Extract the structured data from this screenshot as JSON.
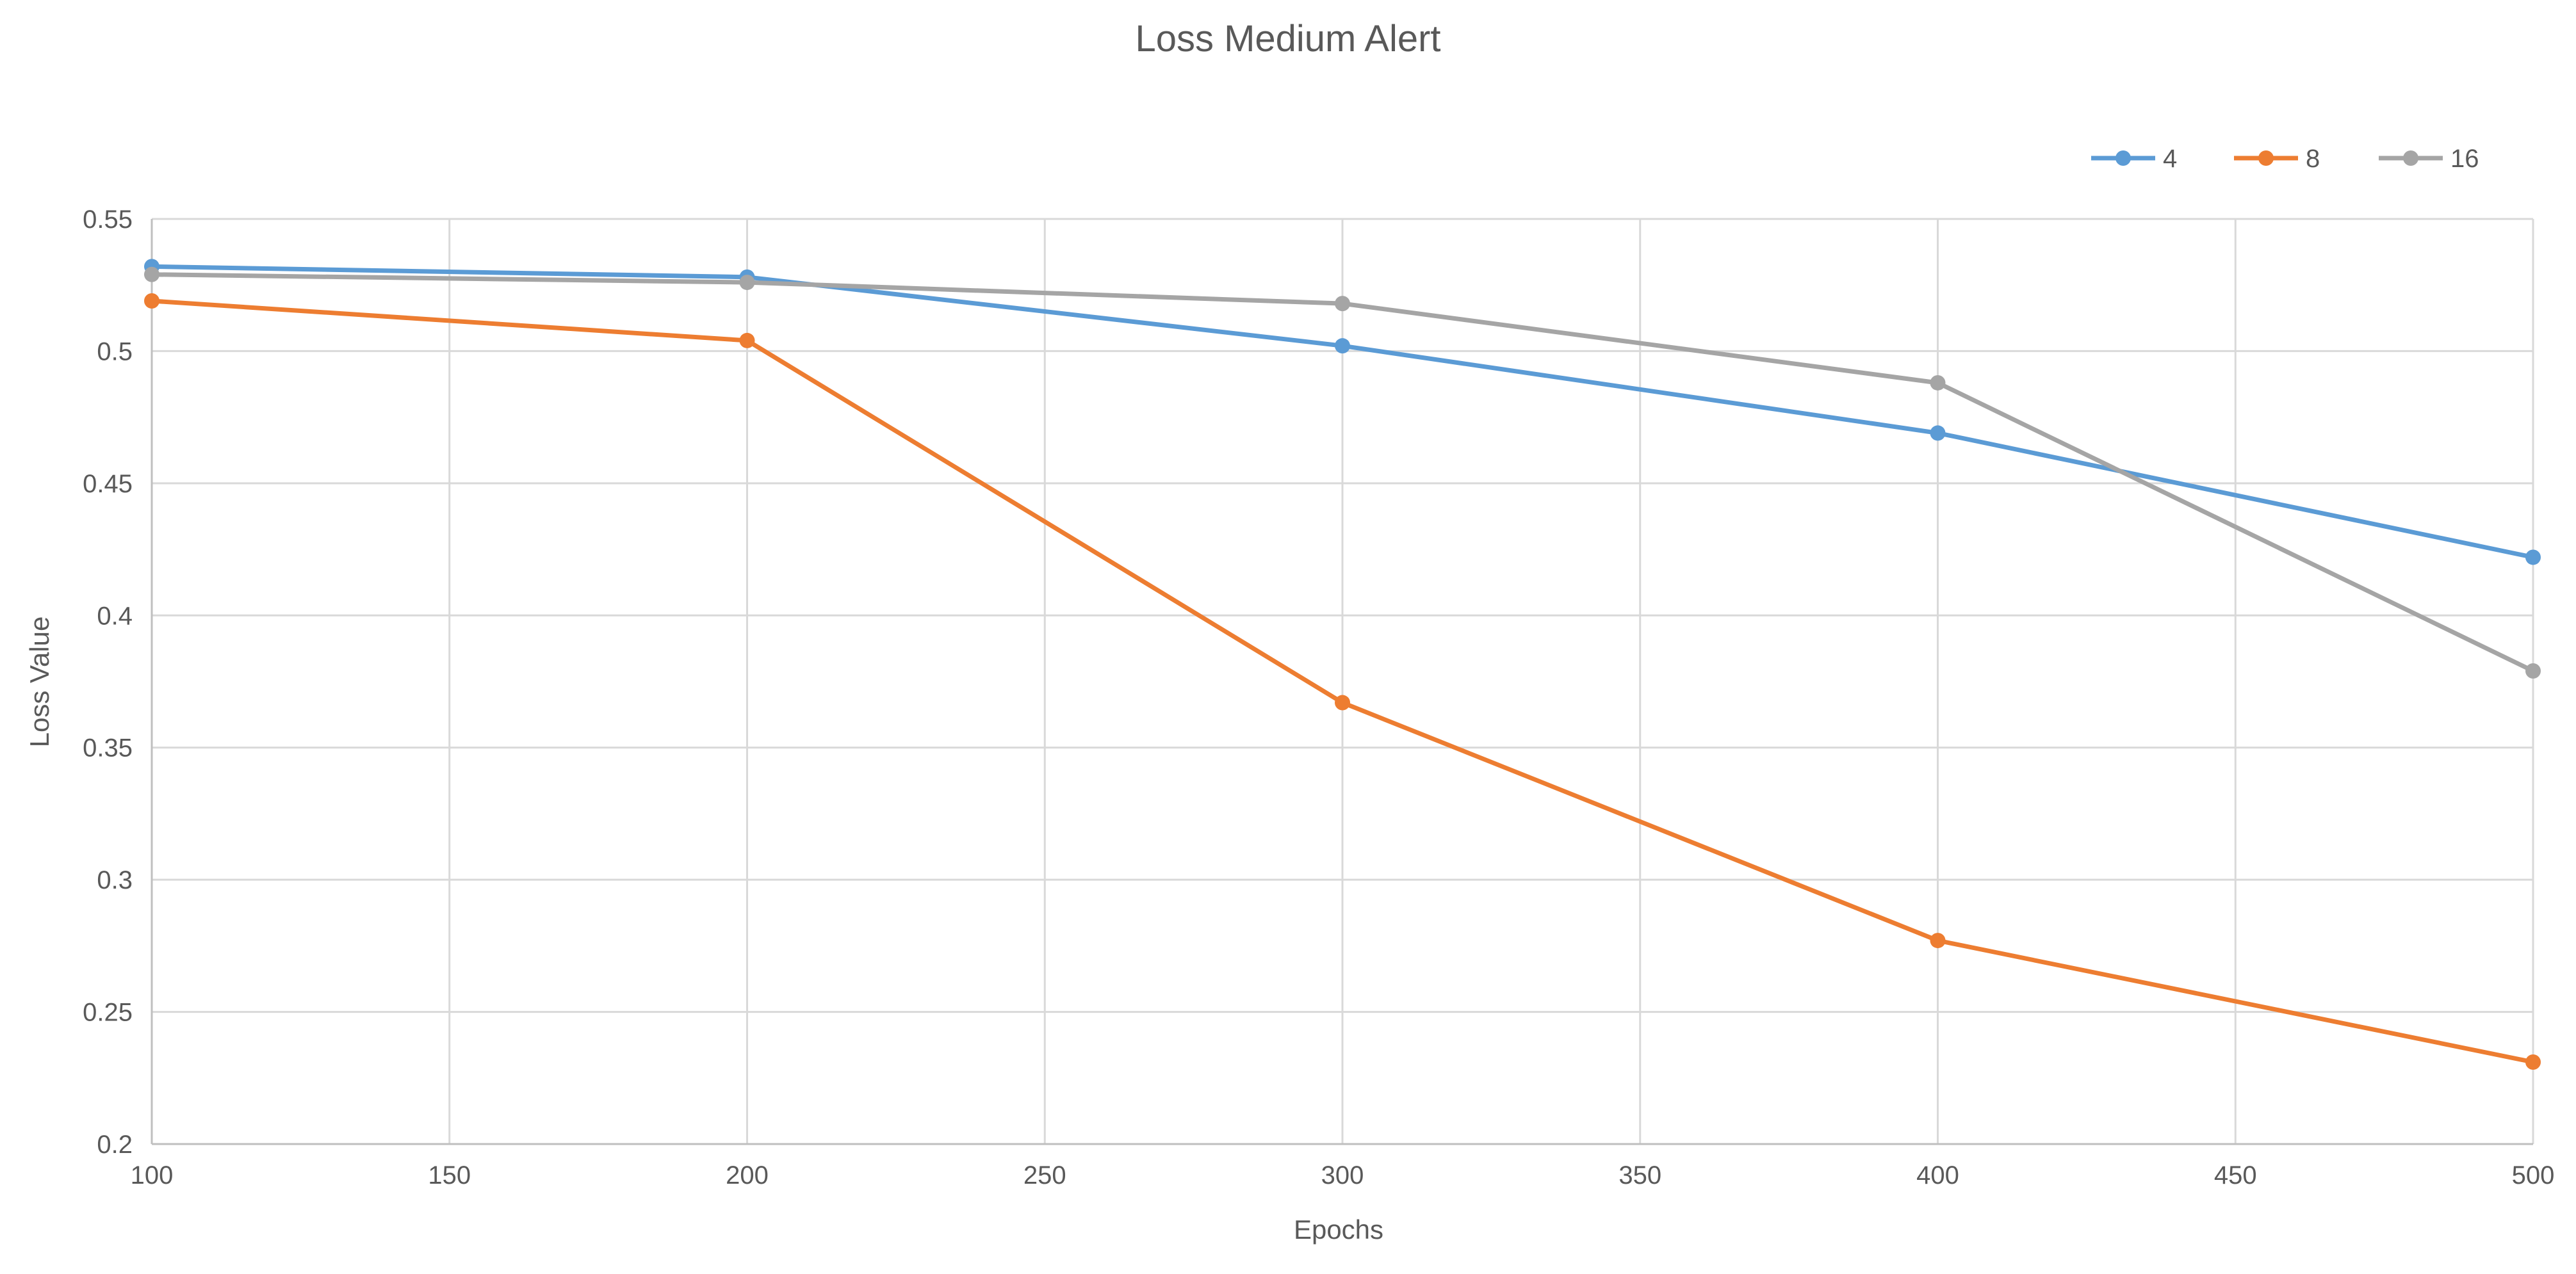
{
  "chart_data": {
    "type": "line",
    "title": "Loss Medium Alert",
    "xlabel": "Epochs",
    "ylabel": "Loss Value",
    "x": [
      100,
      200,
      300,
      400,
      500
    ],
    "xlim": [
      100,
      500
    ],
    "ylim": [
      0.2,
      0.55
    ],
    "x_ticks": [
      100,
      150,
      200,
      250,
      300,
      350,
      400,
      450,
      500
    ],
    "y_ticks": [
      0.2,
      0.25,
      0.3,
      0.35,
      0.4,
      0.45,
      0.5,
      0.55
    ],
    "x_tick_labels": [
      "100",
      "150",
      "200",
      "250",
      "300",
      "350",
      "400",
      "450",
      "500"
    ],
    "y_tick_labels": [
      "0.2",
      "0.25",
      "0.3",
      "0.35",
      "0.4",
      "0.45",
      "0.5",
      "0.55"
    ],
    "grid": true,
    "legend_position": "top-right",
    "series": [
      {
        "name": "4",
        "color": "#5B9BD5",
        "values": [
          0.532,
          0.528,
          0.502,
          0.469,
          0.422
        ]
      },
      {
        "name": "8",
        "color": "#ED7D31",
        "values": [
          0.519,
          0.504,
          0.367,
          0.277,
          0.231
        ]
      },
      {
        "name": "16",
        "color": "#A5A5A5",
        "values": [
          0.529,
          0.526,
          0.518,
          0.488,
          0.379
        ]
      }
    ]
  }
}
